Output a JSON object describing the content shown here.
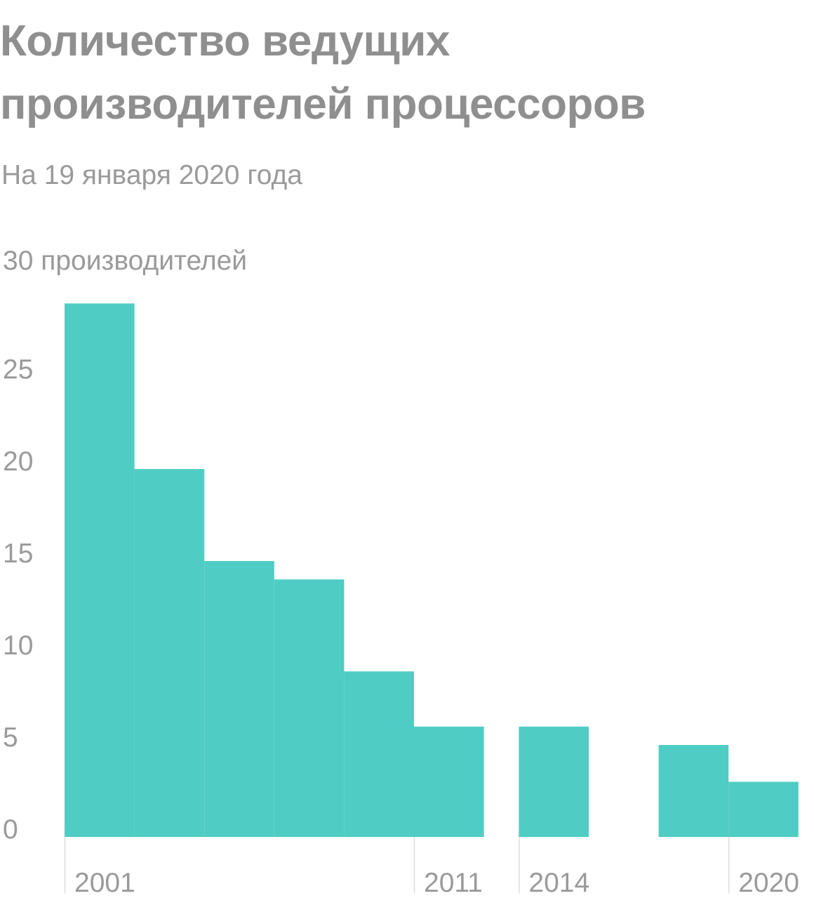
{
  "title": "Количество ведущих производителей процессоров",
  "subtitle": "На 19 января 2020 года",
  "chart_data": {
    "type": "bar",
    "title": "Количество ведущих производителей процессоров",
    "subtitle": "На 19 января 2020 года",
    "y_unit_label": "производителей",
    "ylim": [
      0,
      30
    ],
    "yticks": [
      0,
      5,
      10,
      15,
      20,
      25,
      30
    ],
    "xlim": [
      2001,
      2021
    ],
    "x_tick_labels": [
      "2001",
      "2011",
      "2014",
      "2020"
    ],
    "x_tick_values": [
      2001,
      2011,
      2014,
      2020
    ],
    "categories": [
      "2001",
      "2003",
      "2005",
      "2007",
      "2009",
      "2011",
      "2014",
      "2018",
      "2020"
    ],
    "x_start": [
      2001,
      2003,
      2005,
      2007,
      2009,
      2011,
      2014,
      2018,
      2020
    ],
    "x_end": [
      2003,
      2005,
      2007,
      2009,
      2011,
      2013,
      2016,
      2020,
      2022
    ],
    "values": [
      29,
      20,
      15,
      14,
      9,
      6,
      6,
      5,
      3
    ],
    "grid": false,
    "legend": "none",
    "bar_color": "#4fcdc4",
    "text_color": "#9a9a9a",
    "tick_line_color": "#dddddd"
  }
}
